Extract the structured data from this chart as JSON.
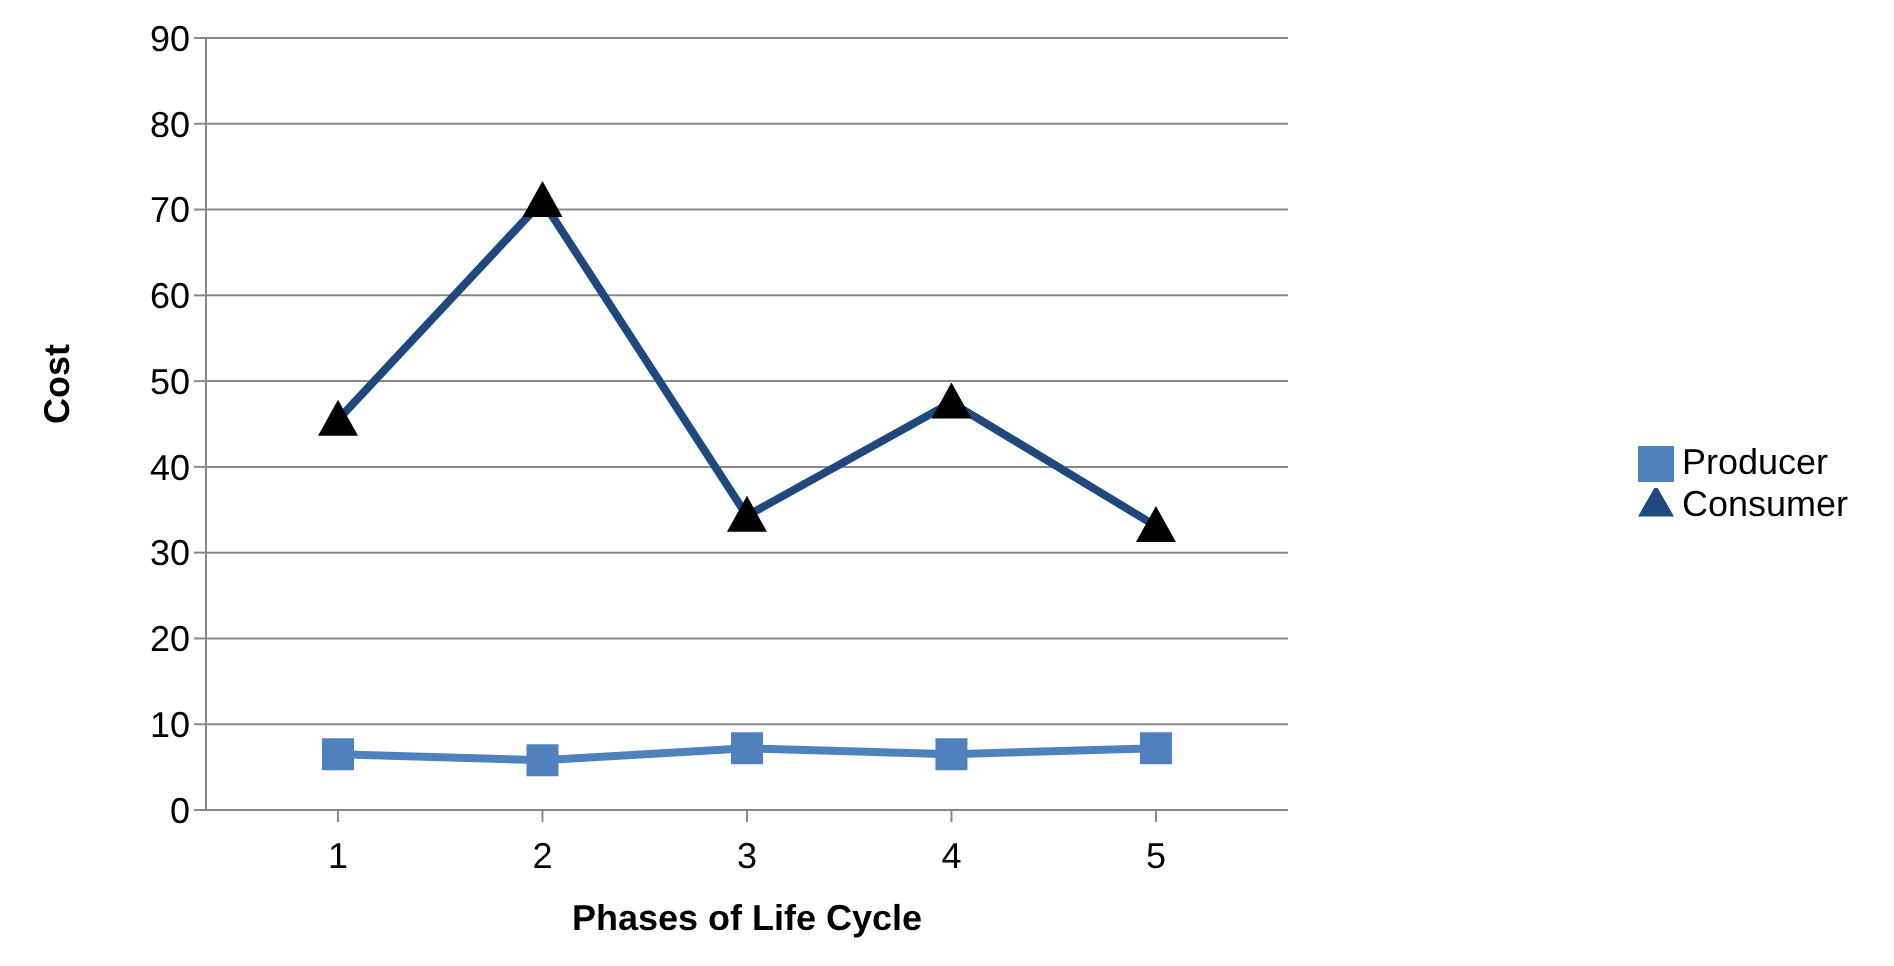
{
  "chart_data": {
    "type": "line",
    "xlabel": "Phases of Life Cycle",
    "ylabel": "Cost",
    "categories": [
      "1",
      "2",
      "3",
      "4",
      "5"
    ],
    "series": [
      {
        "name": "Producer",
        "color": "#4f81bd",
        "marker": "square",
        "values": [
          6.5,
          5.8,
          7.2,
          6.5,
          7.2
        ]
      },
      {
        "name": "Consumer",
        "color": "#1f497d",
        "marker": "triangle",
        "values": [
          45.5,
          71,
          34.3,
          47.5,
          33.1
        ]
      }
    ],
    "ylim": [
      0,
      90
    ],
    "yticks": [
      0,
      10,
      20,
      30,
      40,
      50,
      60,
      70,
      80,
      90
    ],
    "grid": "y",
    "legend": "right"
  }
}
